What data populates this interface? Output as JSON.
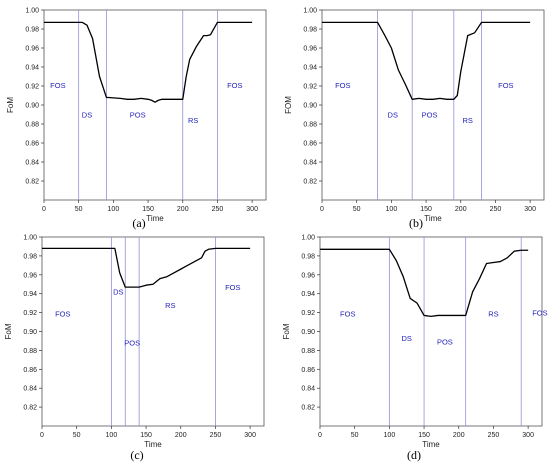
{
  "figure": {
    "panel_captions": [
      "(a)",
      "(b)",
      "(c)",
      "(d)"
    ],
    "colors": {
      "line": "#000000",
      "divider": "#9090d8",
      "phase_label": "#2222bb",
      "frame": "#555555"
    }
  },
  "chart_data": [
    {
      "type": "line",
      "panel": "(a)",
      "xlabel": "Time",
      "ylabel": "FoM",
      "xlim": [
        0,
        320
      ],
      "ylim": [
        0.8,
        1.0
      ],
      "xticks": [
        0,
        50,
        100,
        150,
        200,
        250,
        300
      ],
      "yticks": [
        0.82,
        0.84,
        0.86,
        0.88,
        0.9,
        0.92,
        0.94,
        0.96,
        0.98,
        1.0
      ],
      "grid": false,
      "series": [
        {
          "x": [
            0,
            55,
            62,
            70,
            80,
            90,
            110,
            120,
            130,
            140,
            150,
            155,
            160,
            165,
            170,
            180,
            190,
            200,
            205,
            210,
            220,
            230,
            235,
            240,
            250,
            300
          ],
          "y": [
            0.987,
            0.987,
            0.984,
            0.97,
            0.93,
            0.908,
            0.907,
            0.906,
            0.906,
            0.907,
            0.906,
            0.905,
            0.903,
            0.905,
            0.906,
            0.906,
            0.906,
            0.906,
            0.93,
            0.948,
            0.962,
            0.973,
            0.973,
            0.974,
            0.987,
            0.987
          ]
        }
      ],
      "phase_boundaries": [
        50,
        90,
        200,
        250
      ],
      "phase_labels": [
        {
          "text": "FOS",
          "x": 20,
          "y": 0.918
        },
        {
          "text": "DS",
          "x": 62,
          "y": 0.887
        },
        {
          "text": "POS",
          "x": 135,
          "y": 0.887
        },
        {
          "text": "RS",
          "x": 215,
          "y": 0.881
        },
        {
          "text": "FOS",
          "x": 275,
          "y": 0.918
        }
      ]
    },
    {
      "type": "line",
      "panel": "(b)",
      "xlabel": "Time",
      "ylabel": "FOM",
      "xlim": [
        0,
        320
      ],
      "ylim": [
        0.8,
        1.0
      ],
      "xticks": [
        0,
        50,
        100,
        150,
        200,
        250,
        300
      ],
      "yticks": [
        0.82,
        0.84,
        0.86,
        0.88,
        0.9,
        0.92,
        0.94,
        0.96,
        0.98,
        1.0
      ],
      "grid": false,
      "series": [
        {
          "x": [
            0,
            80,
            90,
            100,
            110,
            120,
            130,
            140,
            150,
            160,
            170,
            180,
            190,
            195,
            200,
            210,
            220,
            230,
            300
          ],
          "y": [
            0.987,
            0.987,
            0.974,
            0.96,
            0.937,
            0.922,
            0.906,
            0.907,
            0.906,
            0.906,
            0.907,
            0.906,
            0.906,
            0.91,
            0.935,
            0.973,
            0.976,
            0.987,
            0.987
          ]
        }
      ],
      "phase_boundaries": [
        80,
        130,
        190,
        230
      ],
      "phase_labels": [
        {
          "text": "FOS",
          "x": 30,
          "y": 0.918
        },
        {
          "text": "DS",
          "x": 102,
          "y": 0.887
        },
        {
          "text": "POS",
          "x": 155,
          "y": 0.887
        },
        {
          "text": "RS",
          "x": 210,
          "y": 0.881
        },
        {
          "text": "FOS",
          "x": 265,
          "y": 0.918
        }
      ]
    },
    {
      "type": "line",
      "panel": "(c)",
      "xlabel": "Time",
      "ylabel": "FoM",
      "xlim": [
        0,
        320
      ],
      "ylim": [
        0.8,
        1.0
      ],
      "xticks": [
        0,
        50,
        100,
        150,
        200,
        250,
        300
      ],
      "yticks": [
        0.82,
        0.84,
        0.86,
        0.88,
        0.9,
        0.92,
        0.94,
        0.96,
        0.98,
        1.0
      ],
      "grid": false,
      "series": [
        {
          "x": [
            0,
            105,
            112,
            120,
            130,
            140,
            150,
            160,
            170,
            180,
            190,
            200,
            210,
            220,
            230,
            235,
            240,
            250,
            300
          ],
          "y": [
            0.988,
            0.988,
            0.962,
            0.947,
            0.947,
            0.947,
            0.949,
            0.95,
            0.956,
            0.958,
            0.962,
            0.966,
            0.97,
            0.974,
            0.978,
            0.985,
            0.987,
            0.988,
            0.988
          ]
        }
      ],
      "phase_boundaries": [
        100,
        120,
        140,
        250
      ],
      "phase_labels": [
        {
          "text": "FOS",
          "x": 30,
          "y": 0.916
        },
        {
          "text": "DS",
          "x": 110,
          "y": 0.939
        },
        {
          "text": "POS",
          "x": 130,
          "y": 0.885
        },
        {
          "text": "RS",
          "x": 185,
          "y": 0.925
        },
        {
          "text": "FOS",
          "x": 275,
          "y": 0.944
        }
      ]
    },
    {
      "type": "line",
      "panel": "(d)",
      "xlabel": "Time",
      "ylabel": "FoM",
      "xlim": [
        0,
        320
      ],
      "ylim": [
        0.8,
        1.0
      ],
      "xticks": [
        0,
        50,
        100,
        150,
        200,
        250,
        300
      ],
      "yticks": [
        0.82,
        0.84,
        0.86,
        0.88,
        0.9,
        0.92,
        0.94,
        0.96,
        0.98,
        1.0
      ],
      "grid": false,
      "series": [
        {
          "x": [
            0,
            100,
            110,
            120,
            130,
            140,
            150,
            160,
            170,
            180,
            190,
            200,
            210,
            220,
            230,
            240,
            250,
            260,
            270,
            280,
            290,
            300
          ],
          "y": [
            0.987,
            0.987,
            0.975,
            0.958,
            0.935,
            0.93,
            0.917,
            0.916,
            0.917,
            0.917,
            0.917,
            0.917,
            0.917,
            0.942,
            0.956,
            0.972,
            0.973,
            0.974,
            0.978,
            0.985,
            0.986,
            0.986
          ]
        }
      ],
      "phase_boundaries": [
        100,
        150,
        210,
        290
      ],
      "phase_labels": [
        {
          "text": "FOS",
          "x": 40,
          "y": 0.916
        },
        {
          "text": "DS",
          "x": 125,
          "y": 0.89
        },
        {
          "text": "POS",
          "x": 180,
          "y": 0.886
        },
        {
          "text": "RS",
          "x": 250,
          "y": 0.916
        },
        {
          "text": "FOS",
          "x": 317,
          "y": 0.917
        }
      ]
    }
  ]
}
